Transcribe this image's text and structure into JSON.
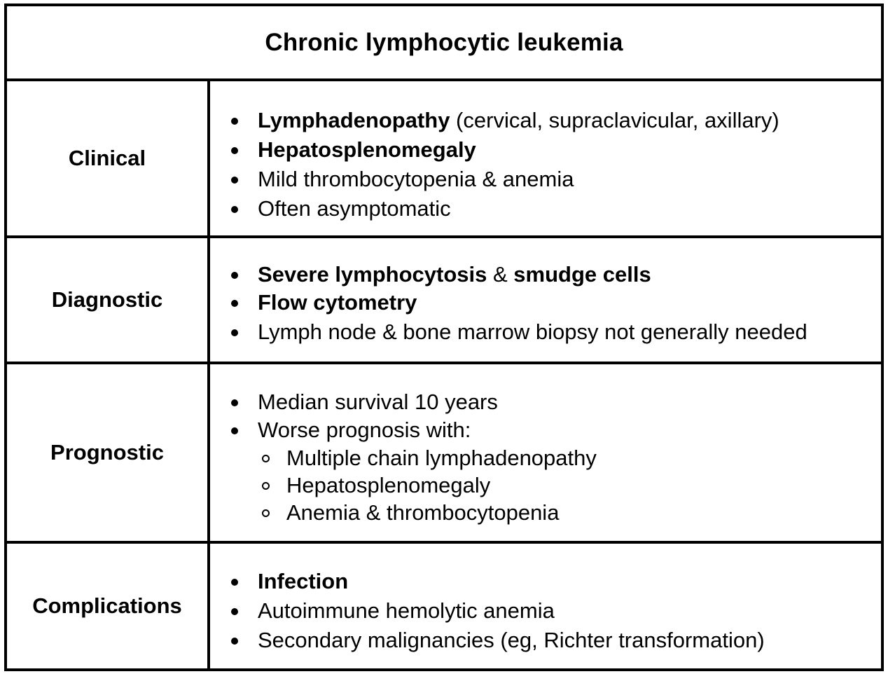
{
  "title": "Chronic lymphocytic leukemia",
  "sections": {
    "clinical": {
      "label": "Clinical",
      "items": [
        {
          "bold": "Lymphadenopathy",
          "rest": " (cervical, supraclavicular, axillary)"
        },
        {
          "bold": "Hepatosplenomegaly",
          "rest": ""
        },
        {
          "bold": "",
          "rest": "Mild thrombocytopenia & anemia"
        },
        {
          "bold": "",
          "rest": "Often asymptomatic"
        }
      ]
    },
    "diagnostic": {
      "label": "Diagnostic",
      "items": [
        {
          "bold": "Severe lymphocytosis",
          "mid": " & ",
          "bold2": "smudge cells"
        },
        {
          "bold": "Flow cytometry",
          "rest": ""
        },
        {
          "bold": "",
          "rest": "Lymph node & bone marrow biopsy not generally needed"
        }
      ]
    },
    "prognostic": {
      "label": "Prognostic",
      "items": [
        {
          "text": "Median survival 10 years"
        },
        {
          "text": "Worse prognosis with:"
        }
      ],
      "subitems": [
        {
          "text": "Multiple chain lymphadenopathy"
        },
        {
          "text": "Hepatosplenomegaly"
        },
        {
          "text": "Anemia & thrombocytopenia"
        }
      ]
    },
    "complications": {
      "label": "Complications",
      "items": [
        {
          "bold": "Infection",
          "rest": ""
        },
        {
          "bold": "",
          "rest": "Autoimmune hemolytic anemia"
        },
        {
          "bold": "",
          "rest": "Secondary malignancies (eg, Richter transformation)"
        }
      ]
    }
  }
}
